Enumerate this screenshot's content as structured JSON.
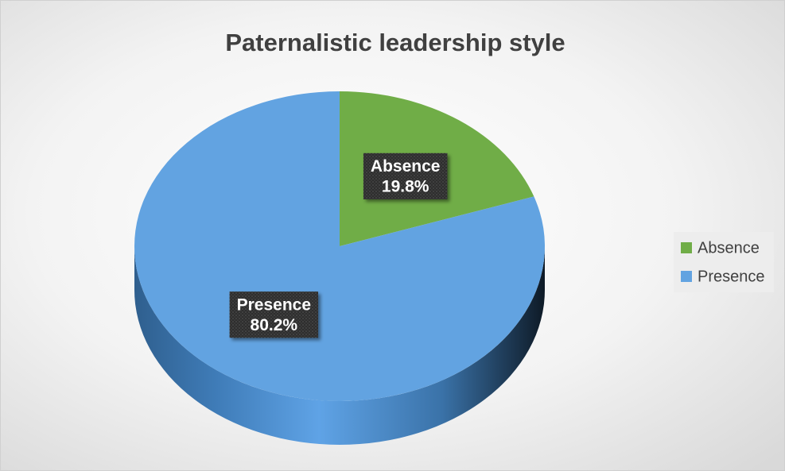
{
  "chart_data": {
    "type": "pie",
    "title": "Paternalistic leadership style",
    "categories": [
      "Absence",
      "Presence"
    ],
    "values": [
      19.8,
      80.2
    ],
    "value_labels": [
      "19.8%",
      "80.2%"
    ],
    "colors": [
      "#70ad47",
      "#62a3e1"
    ],
    "legend": "right"
  }
}
